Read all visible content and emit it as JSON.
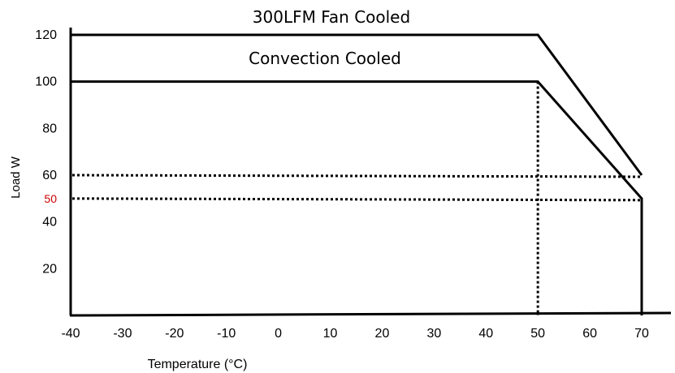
{
  "chart_data": {
    "type": "line",
    "xlabel": "Temperature (°C)",
    "ylabel": "Load W",
    "x_ticks": [
      {
        "value": -40,
        "label": "-40"
      },
      {
        "value": -30,
        "label": "-30"
      },
      {
        "value": -20,
        "label": "-20"
      },
      {
        "value": -10,
        "label": "-10"
      },
      {
        "value": 0,
        "label": "0"
      },
      {
        "value": 10,
        "label": "10"
      },
      {
        "value": 20,
        "label": "20"
      },
      {
        "value": 30,
        "label": "30"
      },
      {
        "value": 40,
        "label": "40"
      },
      {
        "value": 50,
        "label": "50"
      },
      {
        "value": 60,
        "label": "60"
      },
      {
        "value": 70,
        "label": "70"
      }
    ],
    "y_ticks": [
      {
        "value": 20,
        "label": "20",
        "color": "#000000"
      },
      {
        "value": 40,
        "label": "40",
        "color": "#000000"
      },
      {
        "value": 50,
        "label": "50",
        "color": "#cc0000"
      },
      {
        "value": 60,
        "label": "60",
        "color": "#000000"
      },
      {
        "value": 80,
        "label": "80",
        "color": "#000000"
      },
      {
        "value": 100,
        "label": "100",
        "color": "#000000"
      },
      {
        "value": 120,
        "label": "120",
        "color": "#000000"
      }
    ],
    "xlim": [
      -40,
      70
    ],
    "ylim": [
      0,
      120
    ],
    "series": [
      {
        "name": "300LFM Fan Cooled",
        "x": [
          -40,
          50,
          70
        ],
        "y": [
          120,
          120,
          60
        ]
      },
      {
        "name": "Convection Cooled",
        "x": [
          -40,
          50,
          70,
          70
        ],
        "y": [
          100,
          100,
          50,
          0
        ]
      }
    ],
    "reference_lines": [
      {
        "orientation": "horizontal",
        "value": 60,
        "style": "dotted"
      },
      {
        "orientation": "horizontal",
        "value": 50,
        "style": "dotted"
      },
      {
        "orientation": "vertical",
        "value": 50,
        "style": "dotted"
      }
    ],
    "grid": false,
    "legend": "none"
  }
}
